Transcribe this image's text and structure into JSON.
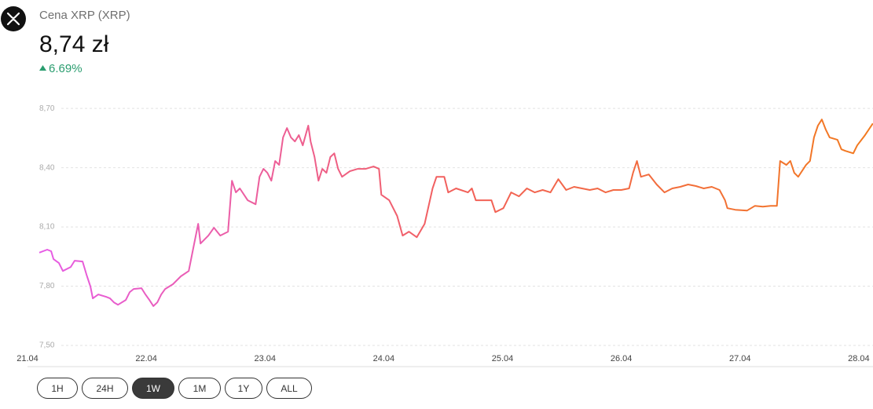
{
  "header": {
    "title": "Cena XRP (XRP)",
    "price": "8,74 zł",
    "change": "6.69%"
  },
  "buttons": {
    "labels": [
      "1H",
      "24H",
      "1W",
      "1M",
      "1Y",
      "ALL"
    ],
    "active": "1W"
  },
  "chart_data": {
    "type": "line",
    "gradient": [
      "#e65ce6",
      "#f2605a",
      "#f27a1f"
    ],
    "grid": true,
    "xlim": [
      0,
      7.12
    ],
    "xticks": [
      {
        "value": 0,
        "label": "21.04"
      },
      {
        "value": 1,
        "label": "22.04"
      },
      {
        "value": 2,
        "label": "23.04"
      },
      {
        "value": 3,
        "label": "24.04"
      },
      {
        "value": 4,
        "label": "25.04"
      },
      {
        "value": 5,
        "label": "26.04"
      },
      {
        "value": 6,
        "label": "27.04"
      },
      {
        "value": 7,
        "label": "28.04"
      }
    ],
    "ylim": [
      7.5,
      8.8
    ],
    "yticks": [
      {
        "value": 7.5,
        "label": "7,50"
      },
      {
        "value": 7.8,
        "label": "7,80"
      },
      {
        "value": 8.1,
        "label": "8,10"
      },
      {
        "value": 8.4,
        "label": "8,40"
      },
      {
        "value": 8.7,
        "label": "8,70"
      }
    ],
    "x": [
      0.099,
      0.166,
      0.199,
      0.219,
      0.265,
      0.298,
      0.364,
      0.397,
      0.464,
      0.497,
      0.53,
      0.55,
      0.596,
      0.662,
      0.695,
      0.728,
      0.762,
      0.828,
      0.861,
      0.894,
      0.96,
      0.993,
      1.026,
      1.06,
      1.093,
      1.126,
      1.159,
      1.225,
      1.291,
      1.358,
      1.391,
      1.437,
      1.457,
      1.523,
      1.57,
      1.623,
      1.689,
      1.722,
      1.755,
      1.788,
      1.854,
      1.921,
      1.954,
      1.987,
      2.02,
      2.053,
      2.086,
      2.119,
      2.152,
      2.185,
      2.219,
      2.252,
      2.285,
      2.318,
      2.364,
      2.384,
      2.417,
      2.45,
      2.483,
      2.517,
      2.55,
      2.583,
      2.616,
      2.649,
      2.715,
      2.781,
      2.848,
      2.914,
      2.96,
      2.98,
      3.046,
      3.113,
      3.159,
      3.212,
      3.278,
      3.344,
      3.411,
      3.444,
      3.51,
      3.543,
      3.609,
      3.709,
      3.742,
      3.775,
      3.841,
      3.907,
      3.94,
      4.007,
      4.073,
      4.139,
      4.205,
      4.272,
      4.338,
      4.404,
      4.47,
      4.536,
      4.603,
      4.669,
      4.735,
      4.801,
      4.868,
      4.934,
      5.0,
      5.066,
      5.099,
      5.132,
      5.166,
      5.232,
      5.298,
      5.364,
      5.43,
      5.497,
      5.563,
      5.629,
      5.695,
      5.762,
      5.828,
      5.874,
      5.894,
      5.96,
      6.06,
      6.126,
      6.192,
      6.258,
      6.311,
      6.338,
      6.391,
      6.424,
      6.457,
      6.49,
      6.556,
      6.589,
      6.623,
      6.656,
      6.689,
      6.722,
      6.755,
      6.821,
      6.854,
      6.887,
      6.954,
      6.987,
      7.053,
      7.119
    ],
    "values": [
      7.97,
      7.985,
      7.977,
      7.937,
      7.917,
      7.877,
      7.897,
      7.929,
      7.925,
      7.858,
      7.798,
      7.738,
      7.758,
      7.746,
      7.738,
      7.718,
      7.706,
      7.73,
      7.77,
      7.786,
      7.79,
      7.758,
      7.73,
      7.699,
      7.718,
      7.758,
      7.786,
      7.81,
      7.85,
      7.877,
      7.977,
      8.116,
      8.016,
      8.056,
      8.096,
      8.056,
      8.076,
      8.334,
      8.275,
      8.295,
      8.235,
      8.215,
      8.354,
      8.394,
      8.374,
      8.334,
      8.434,
      8.414,
      8.553,
      8.601,
      8.553,
      8.533,
      8.565,
      8.513,
      8.613,
      8.533,
      8.454,
      8.334,
      8.394,
      8.374,
      8.454,
      8.473,
      8.394,
      8.354,
      8.382,
      8.394,
      8.394,
      8.406,
      8.394,
      8.263,
      8.235,
      8.156,
      8.056,
      8.076,
      8.048,
      8.116,
      8.295,
      8.354,
      8.354,
      8.275,
      8.295,
      8.275,
      8.295,
      8.235,
      8.235,
      8.235,
      8.175,
      8.195,
      8.275,
      8.255,
      8.295,
      8.275,
      8.287,
      8.275,
      8.342,
      8.287,
      8.303,
      8.295,
      8.287,
      8.295,
      8.275,
      8.287,
      8.287,
      8.295,
      8.374,
      8.434,
      8.354,
      8.366,
      8.315,
      8.275,
      8.295,
      8.303,
      8.315,
      8.307,
      8.295,
      8.303,
      8.287,
      8.235,
      8.195,
      8.187,
      8.183,
      8.207,
      8.203,
      8.207,
      8.207,
      8.434,
      8.414,
      8.434,
      8.374,
      8.354,
      8.414,
      8.434,
      8.553,
      8.613,
      8.644,
      8.593,
      8.553,
      8.541,
      8.493,
      8.485,
      8.473,
      8.513,
      8.565,
      8.624
    ]
  }
}
